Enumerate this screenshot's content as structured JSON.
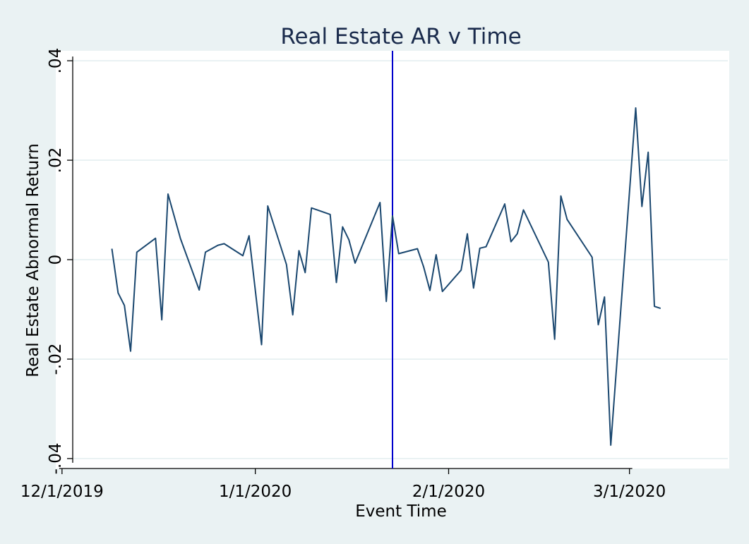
{
  "chart_data": {
    "type": "line",
    "title": "Real Estate AR v Time",
    "xlabel": "Event Time",
    "ylabel": "Real Estate Abnormal Return",
    "x_axis": {
      "type": "date",
      "range": [
        "2019-11-30",
        "2020-03-17"
      ]
    },
    "xticks": [
      {
        "date": "2019-12-01",
        "label": "12/1/2019"
      },
      {
        "date": "2020-01-01",
        "label": "1/1/2020"
      },
      {
        "date": "2020-02-01",
        "label": "2/1/2020"
      },
      {
        "date": "2020-03-01",
        "label": "3/1/2020"
      }
    ],
    "ylim": [
      -0.042,
      0.042
    ],
    "yticks": [
      {
        "value": -0.04,
        "label": "-.04"
      },
      {
        "value": -0.02,
        "label": "-.02"
      },
      {
        "value": 0,
        "label": "0"
      },
      {
        "value": 0.02,
        "label": ".02"
      },
      {
        "value": 0.04,
        "label": ".04"
      }
    ],
    "grid": true,
    "reference_line": {
      "date": "2020-01-23",
      "color": "#0000cc"
    },
    "series": [
      {
        "color": "#1a476f",
        "points": [
          {
            "x": "2019-12-09",
            "y": 0.0022
          },
          {
            "x": "2019-12-10",
            "y": -0.0067
          },
          {
            "x": "2019-12-11",
            "y": -0.0092
          },
          {
            "x": "2019-12-12",
            "y": -0.0184
          },
          {
            "x": "2019-12-13",
            "y": 0.0015
          },
          {
            "x": "2019-12-16",
            "y": 0.0043
          },
          {
            "x": "2019-12-17",
            "y": -0.0121
          },
          {
            "x": "2019-12-18",
            "y": 0.0132
          },
          {
            "x": "2019-12-20",
            "y": 0.0042
          },
          {
            "x": "2019-12-23",
            "y": -0.0061
          },
          {
            "x": "2019-12-24",
            "y": 0.0015
          },
          {
            "x": "2019-12-26",
            "y": 0.0029
          },
          {
            "x": "2019-12-27",
            "y": 0.0032
          },
          {
            "x": "2019-12-30",
            "y": 0.0008
          },
          {
            "x": "2019-12-31",
            "y": 0.0048
          },
          {
            "x": "2020-01-02",
            "y": -0.0171
          },
          {
            "x": "2020-01-03",
            "y": 0.0108
          },
          {
            "x": "2020-01-06",
            "y": -0.001
          },
          {
            "x": "2020-01-07",
            "y": -0.0111
          },
          {
            "x": "2020-01-08",
            "y": 0.0018
          },
          {
            "x": "2020-01-09",
            "y": -0.0026
          },
          {
            "x": "2020-01-10",
            "y": 0.0104
          },
          {
            "x": "2020-01-13",
            "y": 0.0091
          },
          {
            "x": "2020-01-14",
            "y": -0.0046
          },
          {
            "x": "2020-01-15",
            "y": 0.0066
          },
          {
            "x": "2020-01-16",
            "y": 0.004
          },
          {
            "x": "2020-01-17",
            "y": -0.0007
          },
          {
            "x": "2020-01-21",
            "y": 0.0115
          },
          {
            "x": "2020-01-22",
            "y": -0.0084
          },
          {
            "x": "2020-01-23",
            "y": 0.0088
          },
          {
            "x": "2020-01-24",
            "y": 0.0012
          },
          {
            "x": "2020-01-27",
            "y": 0.0022
          },
          {
            "x": "2020-01-28",
            "y": -0.0015
          },
          {
            "x": "2020-01-29",
            "y": -0.0062
          },
          {
            "x": "2020-01-30",
            "y": 0.001
          },
          {
            "x": "2020-01-31",
            "y": -0.0064
          },
          {
            "x": "2020-02-03",
            "y": -0.0021
          },
          {
            "x": "2020-02-04",
            "y": 0.0052
          },
          {
            "x": "2020-02-05",
            "y": -0.0057
          },
          {
            "x": "2020-02-06",
            "y": 0.0023
          },
          {
            "x": "2020-02-07",
            "y": 0.0026
          },
          {
            "x": "2020-02-10",
            "y": 0.0112
          },
          {
            "x": "2020-02-11",
            "y": 0.0036
          },
          {
            "x": "2020-02-12",
            "y": 0.0052
          },
          {
            "x": "2020-02-13",
            "y": 0.01
          },
          {
            "x": "2020-02-17",
            "y": -0.0005
          },
          {
            "x": "2020-02-18",
            "y": -0.016
          },
          {
            "x": "2020-02-19",
            "y": 0.0128
          },
          {
            "x": "2020-02-20",
            "y": 0.0081
          },
          {
            "x": "2020-02-24",
            "y": 0.0005
          },
          {
            "x": "2020-02-25",
            "y": -0.0131
          },
          {
            "x": "2020-02-26",
            "y": -0.0075
          },
          {
            "x": "2020-02-27",
            "y": -0.0373
          },
          {
            "x": "2020-03-02",
            "y": 0.0305
          },
          {
            "x": "2020-03-03",
            "y": 0.0107
          },
          {
            "x": "2020-03-04",
            "y": 0.0216
          },
          {
            "x": "2020-03-05",
            "y": -0.0094
          },
          {
            "x": "2020-03-06",
            "y": -0.0098
          }
        ]
      }
    ]
  }
}
